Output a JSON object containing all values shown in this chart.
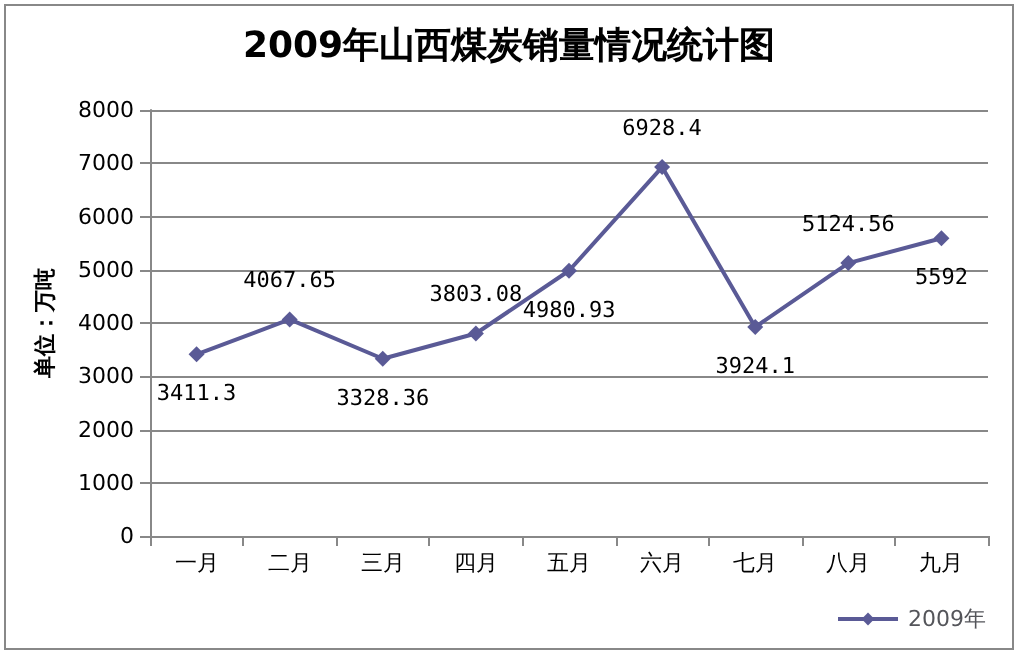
{
  "chart_data": {
    "type": "line",
    "title": "2009年山西煤炭销量情况统计图",
    "ylabel": "单位：万吨",
    "categories": [
      "一月",
      "二月",
      "三月",
      "四月",
      "五月",
      "六月",
      "七月",
      "八月",
      "九月"
    ],
    "series": [
      {
        "name": "2009年",
        "color": "#5a5a96",
        "values": [
          3411.3,
          4067.65,
          3328.36,
          3803.08,
          4980.93,
          6928.4,
          3924.1,
          5124.56,
          5592
        ]
      }
    ],
    "ylim": [
      0,
      8000
    ],
    "yticks": [
      0,
      1000,
      2000,
      3000,
      4000,
      5000,
      6000,
      7000,
      8000
    ],
    "grid": "y",
    "legend": "bottom right",
    "marker": "diamond",
    "line_style": "solid",
    "data_labels": true
  }
}
